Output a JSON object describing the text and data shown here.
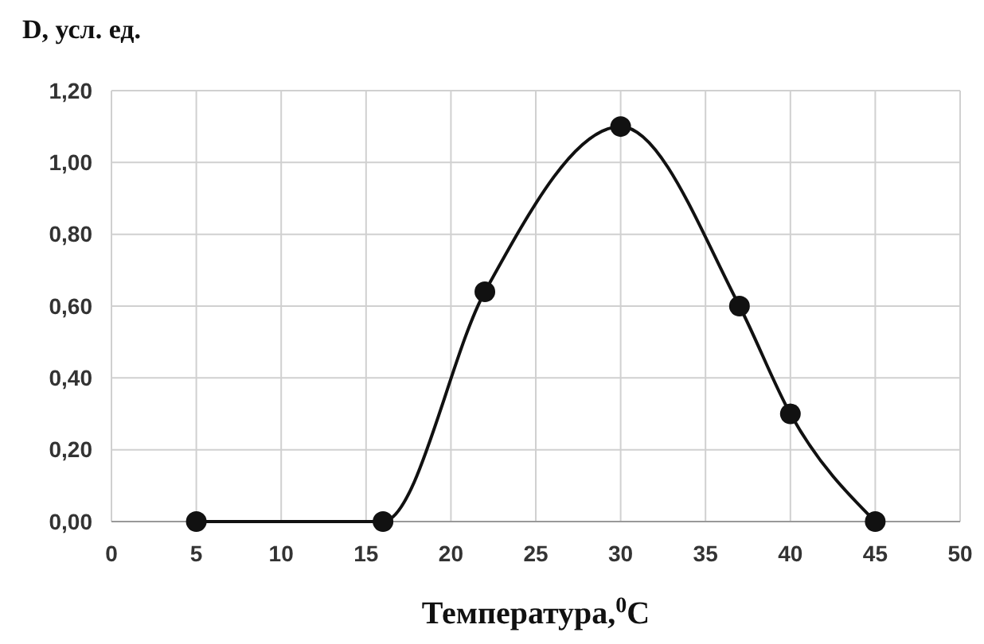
{
  "chart_data": {
    "type": "line",
    "ylabel": "D, усл. ед.",
    "xlabel": "Температура,$^{0}$C",
    "x": [
      5,
      16,
      22,
      30,
      37,
      40,
      45
    ],
    "series": [
      {
        "color": "#111111",
        "values": [
          0,
          0,
          0.64,
          1.1,
          0.6,
          0.3,
          0
        ]
      }
    ],
    "xlim": [
      0,
      50
    ],
    "xticks": [
      0,
      5,
      10,
      15,
      20,
      25,
      30,
      35,
      40,
      45,
      50
    ],
    "ylim": [
      0,
      1.2
    ],
    "yticks": [
      {
        "value": 0,
        "label": "0,00"
      },
      {
        "value": 0.2,
        "label": "0,20"
      },
      {
        "value": 0.4,
        "label": "0,40"
      },
      {
        "value": 0.6,
        "label": "0,60"
      },
      {
        "value": 0.8,
        "label": "0,80"
      },
      {
        "value": 1,
        "label": "1,00"
      },
      {
        "value": 1.2,
        "label": "1,20"
      }
    ],
    "grid": true,
    "marker": "circle",
    "line_style": "solid"
  }
}
